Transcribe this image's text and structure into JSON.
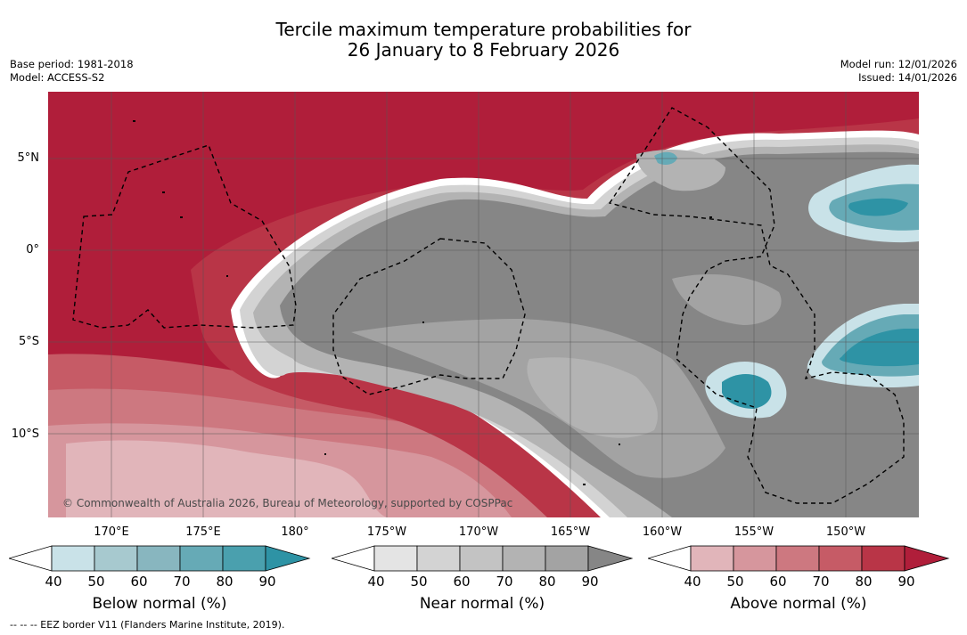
{
  "title": {
    "line1": "Tercile maximum temperature probabilities for",
    "line2": "26 January to 8 February 2026"
  },
  "meta_left": {
    "base_period": "Base period: 1981-2018",
    "model": "Model: ACCESS-S2"
  },
  "meta_right": {
    "model_run": "Model run: 12/01/2026",
    "issued": "Issued: 14/01/2026"
  },
  "latitude_labels": [
    "5°N",
    "0°",
    "5°S",
    "10°S"
  ],
  "longitude_labels": [
    "170°E",
    "175°E",
    "180°",
    "175°W",
    "170°W",
    "165°W",
    "160°W",
    "155°W",
    "150°W"
  ],
  "copyright": "© Commonwealth of Australia 2026, Bureau of Meteorology, supported by COSPPac",
  "colorbars": [
    {
      "name": "below",
      "label": "Below normal (%)",
      "ticks": [
        "40",
        "50",
        "60",
        "70",
        "80",
        "90"
      ],
      "colors": [
        "#ffffff",
        "#c9e2e8",
        "#a7c9cf",
        "#88b6bf",
        "#66aab6",
        "#4aa0ae",
        "#2e93a5"
      ]
    },
    {
      "name": "near",
      "label": "Near normal (%)",
      "ticks": [
        "40",
        "50",
        "60",
        "70",
        "80",
        "90"
      ],
      "colors": [
        "#ffffff",
        "#e4e4e4",
        "#d3d3d3",
        "#c3c3c3",
        "#b3b3b3",
        "#a3a3a3",
        "#868686"
      ]
    },
    {
      "name": "above",
      "label": "Above normal (%)",
      "ticks": [
        "40",
        "50",
        "60",
        "70",
        "80",
        "90"
      ],
      "colors": [
        "#ffffff",
        "#e1b5ba",
        "#d6969d",
        "#cd7880",
        "#c65b66",
        "#b93547",
        "#b01e3a"
      ]
    }
  ],
  "footnote": "--  --  -- EEZ border V11 (Flanders Marine Institute, 2019)."
}
